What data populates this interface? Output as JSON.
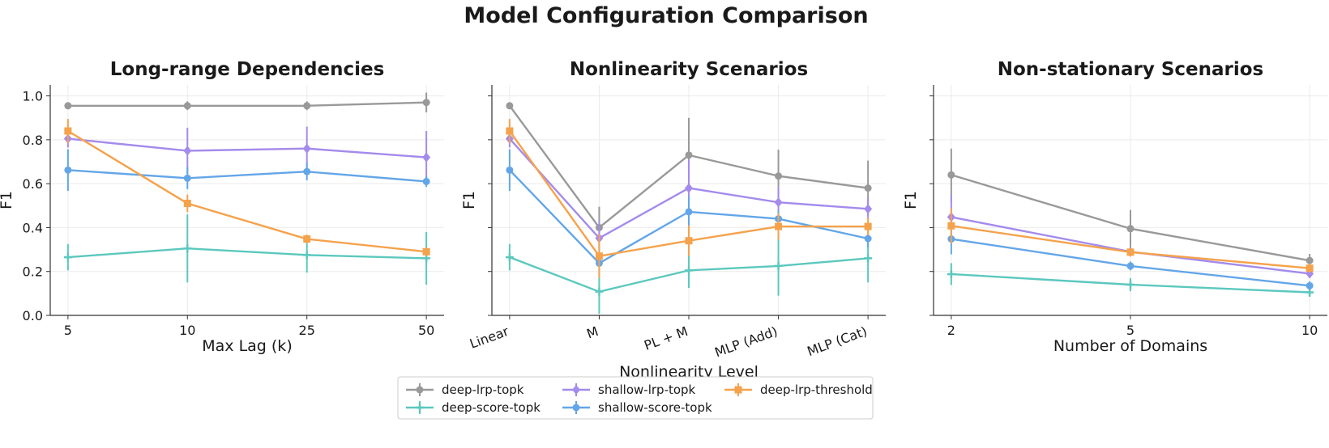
{
  "figure_title": "Model Configuration Comparison",
  "legend": {
    "placement": "bottom-center",
    "columns": 3,
    "order": [
      "deep-lrp-topk",
      "deep-score-topk",
      "shallow-lrp-topk",
      "shallow-score-topk",
      "deep-lrp-threshold"
    ]
  },
  "series_styles": {
    "deep-lrp-topk": {
      "color": "#999999",
      "marker": "circle"
    },
    "deep-score-topk": {
      "color": "#5bc8be",
      "marker": "plus"
    },
    "shallow-lrp-topk": {
      "color": "#a48bec",
      "marker": "diamond"
    },
    "shallow-score-topk": {
      "color": "#63a6e8",
      "marker": "circle"
    },
    "deep-lrp-threshold": {
      "color": "#f5a24c",
      "marker": "square"
    }
  },
  "chart_data": [
    {
      "type": "line",
      "title": "Long-range Dependencies",
      "xlabel": "Max Lag (k)",
      "ylabel": "F1",
      "categories": [
        "5",
        "10",
        "25",
        "50"
      ],
      "ylim": [
        0,
        1.05
      ],
      "yticks": [
        "0.0",
        "0.2",
        "0.4",
        "0.6",
        "0.8",
        "1.0"
      ],
      "show_yticklabels": true,
      "rotate_xticks": false,
      "grid": true,
      "series": [
        {
          "name": "deep-lrp-topk",
          "values": [
            0.955,
            0.955,
            0.955,
            0.97
          ],
          "err": [
            0.015,
            0.02,
            0.02,
            0.045
          ]
        },
        {
          "name": "deep-score-topk",
          "values": [
            0.265,
            0.305,
            0.275,
            0.26
          ],
          "err": [
            0.06,
            0.155,
            0.08,
            0.12
          ]
        },
        {
          "name": "shallow-lrp-topk",
          "values": [
            0.805,
            0.75,
            0.76,
            0.72
          ],
          "err": [
            0.04,
            0.105,
            0.1,
            0.12
          ]
        },
        {
          "name": "shallow-score-topk",
          "values": [
            0.662,
            0.625,
            0.655,
            0.61
          ],
          "err": [
            0.095,
            0.05,
            0.04,
            0.025
          ]
        },
        {
          "name": "deep-lrp-threshold",
          "values": [
            0.84,
            0.51,
            0.348,
            0.29
          ],
          "err": [
            0.055,
            0.04,
            0.02,
            0.02
          ]
        }
      ]
    },
    {
      "type": "line",
      "title": "Nonlinearity Scenarios",
      "xlabel": "Nonlinearity Level",
      "ylabel": "F1",
      "categories": [
        "Linear",
        "M",
        "PL + M",
        "MLP (Add)",
        "MLP (Cat)"
      ],
      "ylim": [
        0,
        1.05
      ],
      "yticks": [
        "0.0",
        "0.2",
        "0.4",
        "0.6",
        "0.8",
        "1.0"
      ],
      "show_yticklabels": false,
      "rotate_xticks": true,
      "grid": true,
      "series": [
        {
          "name": "deep-lrp-topk",
          "values": [
            0.955,
            0.4,
            0.73,
            0.635,
            0.58
          ],
          "err": [
            0.015,
            0.095,
            0.17,
            0.12,
            0.125
          ]
        },
        {
          "name": "deep-score-topk",
          "values": [
            0.265,
            0.108,
            0.205,
            0.225,
            0.26
          ],
          "err": [
            0.06,
            0.1,
            0.08,
            0.135,
            0.11
          ]
        },
        {
          "name": "shallow-lrp-topk",
          "values": [
            0.805,
            0.352,
            0.58,
            0.515,
            0.485
          ],
          "err": [
            0.04,
            0.08,
            0.13,
            0.07,
            0.05
          ]
        },
        {
          "name": "shallow-score-topk",
          "values": [
            0.662,
            0.238,
            0.472,
            0.44,
            0.35
          ],
          "err": [
            0.095,
            0.06,
            0.07,
            0.04,
            0.04
          ]
        },
        {
          "name": "deep-lrp-threshold",
          "values": [
            0.84,
            0.27,
            0.34,
            0.405,
            0.405
          ],
          "err": [
            0.055,
            0.1,
            0.07,
            0.06,
            0.04
          ]
        }
      ]
    },
    {
      "type": "line",
      "title": "Non-stationary Scenarios",
      "xlabel": "Number of Domains",
      "ylabel": "F1",
      "categories": [
        "2",
        "5",
        "10"
      ],
      "ylim": [
        0,
        1.05
      ],
      "yticks": [
        "0.0",
        "0.2",
        "0.4",
        "0.6",
        "0.8",
        "1.0"
      ],
      "show_yticklabels": false,
      "rotate_xticks": false,
      "grid": true,
      "series": [
        {
          "name": "deep-lrp-topk",
          "values": [
            0.64,
            0.395,
            0.25
          ],
          "err": [
            0.12,
            0.085,
            0.03
          ]
        },
        {
          "name": "deep-score-topk",
          "values": [
            0.188,
            0.14,
            0.105
          ],
          "err": [
            0.05,
            0.03,
            0.02
          ]
        },
        {
          "name": "shallow-lrp-topk",
          "values": [
            0.448,
            0.29,
            0.19
          ],
          "err": [
            0.1,
            0.02,
            0.02
          ]
        },
        {
          "name": "shallow-score-topk",
          "values": [
            0.348,
            0.225,
            0.135
          ],
          "err": [
            0.07,
            0.02,
            0.02
          ]
        },
        {
          "name": "deep-lrp-threshold",
          "values": [
            0.408,
            0.288,
            0.215
          ],
          "err": [
            0.08,
            0.02,
            0.02
          ]
        }
      ]
    }
  ]
}
